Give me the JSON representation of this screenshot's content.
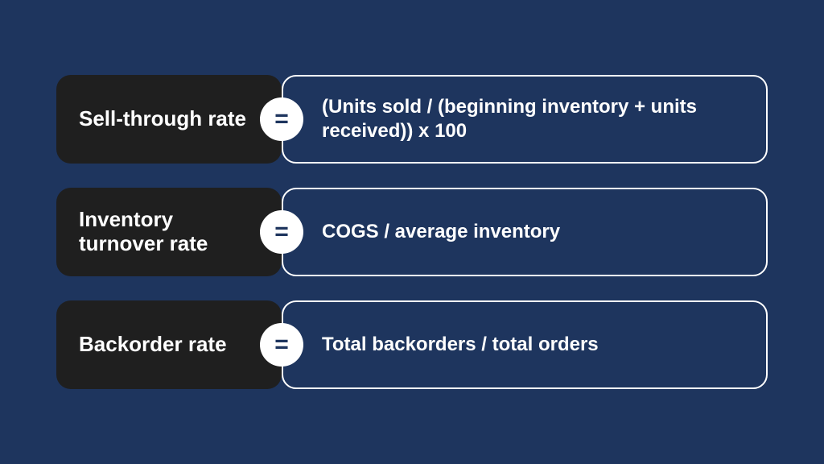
{
  "page": {
    "background_color": "#1e355e",
    "text_color": "#ffffff",
    "label_box_bg": "#1f1f1f",
    "equals_bg": "#ffffff",
    "equals_text_color": "#1e355e",
    "formula_border_color": "#ffffff",
    "border_radius": 18,
    "row_gap": 30,
    "label_fontsize": 26,
    "formula_fontsize": 24,
    "equals_symbol": "="
  },
  "formulas": [
    {
      "label": "Sell-through rate",
      "expression": "(Units sold / (beginning inventory + units received)) x 100"
    },
    {
      "label": "Inventory turnover rate",
      "expression": "COGS / average inventory"
    },
    {
      "label": "Backorder rate",
      "expression": "Total backorders / total orders"
    }
  ]
}
